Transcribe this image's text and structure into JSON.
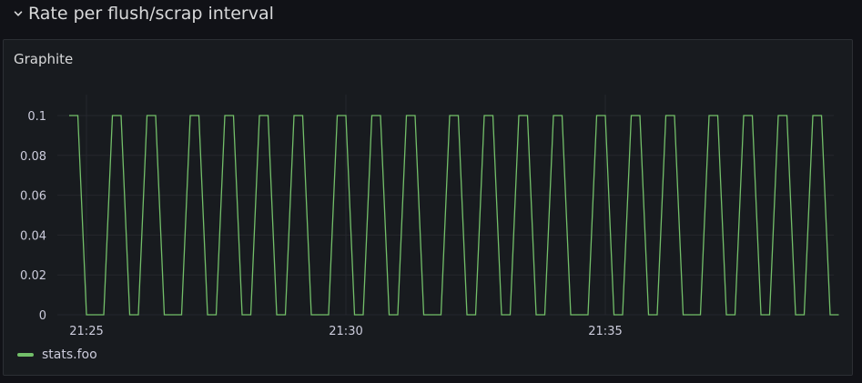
{
  "row": {
    "title": "Rate per flush/scrap interval",
    "chevron_icon": "chevron-down-icon"
  },
  "panel": {
    "title": "Graphite"
  },
  "colors": {
    "series": "#73bf69",
    "grid": "#25272d",
    "tick_text": "#ccccdc"
  },
  "chart_data": {
    "type": "line",
    "title": "Graphite",
    "xlabel": "",
    "ylabel": "",
    "ylim": [
      0,
      0.1
    ],
    "y_ticks": [
      "0",
      "0.02",
      "0.04",
      "0.06",
      "0.08",
      "0.1"
    ],
    "y_tick_values": [
      0,
      0.02,
      0.04,
      0.06,
      0.08,
      0.1
    ],
    "x_ticks": [
      "21:25",
      "21:30",
      "21:35"
    ],
    "x_tick_values": [
      "21:25:00",
      "21:30:00",
      "21:35:00"
    ],
    "x_range": [
      "21:24:40",
      "21:39:30"
    ],
    "grid": true,
    "legend": "bottom-left",
    "series": [
      {
        "name": "stats.foo",
        "color": "#73bf69",
        "x": [
          "21:24:40",
          "21:24:50",
          "21:25:00",
          "21:25:10",
          "21:25:20",
          "21:25:30",
          "21:25:40",
          "21:25:50",
          "21:26:00",
          "21:26:10",
          "21:26:20",
          "21:26:30",
          "21:26:40",
          "21:26:50",
          "21:27:00",
          "21:27:10",
          "21:27:20",
          "21:27:30",
          "21:27:40",
          "21:27:50",
          "21:28:00",
          "21:28:10",
          "21:28:20",
          "21:28:30",
          "21:28:40",
          "21:28:50",
          "21:29:00",
          "21:29:10",
          "21:29:20",
          "21:29:30",
          "21:29:40",
          "21:29:50",
          "21:30:00",
          "21:30:10",
          "21:30:20",
          "21:30:30",
          "21:30:40",
          "21:30:50",
          "21:31:00",
          "21:31:10",
          "21:31:20",
          "21:31:30",
          "21:31:40",
          "21:31:50",
          "21:32:00",
          "21:32:10",
          "21:32:20",
          "21:32:30",
          "21:32:40",
          "21:32:50",
          "21:33:00",
          "21:33:10",
          "21:33:20",
          "21:33:30",
          "21:33:40",
          "21:33:50",
          "21:34:00",
          "21:34:10",
          "21:34:20",
          "21:34:30",
          "21:34:40",
          "21:34:50",
          "21:35:00",
          "21:35:10",
          "21:35:20",
          "21:35:30",
          "21:35:40",
          "21:35:50",
          "21:36:00",
          "21:36:10",
          "21:36:20",
          "21:36:30",
          "21:36:40",
          "21:36:50",
          "21:37:00",
          "21:37:10",
          "21:37:20",
          "21:37:30",
          "21:37:40",
          "21:37:50",
          "21:38:00",
          "21:38:10",
          "21:38:20",
          "21:38:30",
          "21:38:40",
          "21:38:50",
          "21:39:00",
          "21:39:10",
          "21:39:20",
          "21:39:30"
        ],
        "values": [
          0.1,
          0.1,
          0,
          0,
          0,
          0.1,
          0.1,
          0,
          0,
          0.1,
          0.1,
          0,
          0,
          0,
          0.1,
          0.1,
          0,
          0,
          0.1,
          0.1,
          0,
          0,
          0.1,
          0.1,
          0,
          0,
          0.1,
          0.1,
          0,
          0,
          0,
          0.1,
          0.1,
          0,
          0,
          0.1,
          0.1,
          0,
          0,
          0.1,
          0.1,
          0,
          0,
          0,
          0.1,
          0.1,
          0,
          0,
          0.1,
          0.1,
          0,
          0,
          0.1,
          0.1,
          0,
          0,
          0.1,
          0.1,
          0,
          0,
          0,
          0.1,
          0.1,
          0,
          0,
          0.1,
          0.1,
          0,
          0,
          0.1,
          0.1,
          0,
          0,
          0,
          0.1,
          0.1,
          0,
          0,
          0.1,
          0.1,
          0,
          0,
          0.1,
          0.1,
          0,
          0,
          0.1,
          0.1,
          0,
          0
        ]
      }
    ]
  },
  "legend": {
    "items": [
      {
        "label": "stats.foo",
        "color": "#73bf69"
      }
    ]
  }
}
